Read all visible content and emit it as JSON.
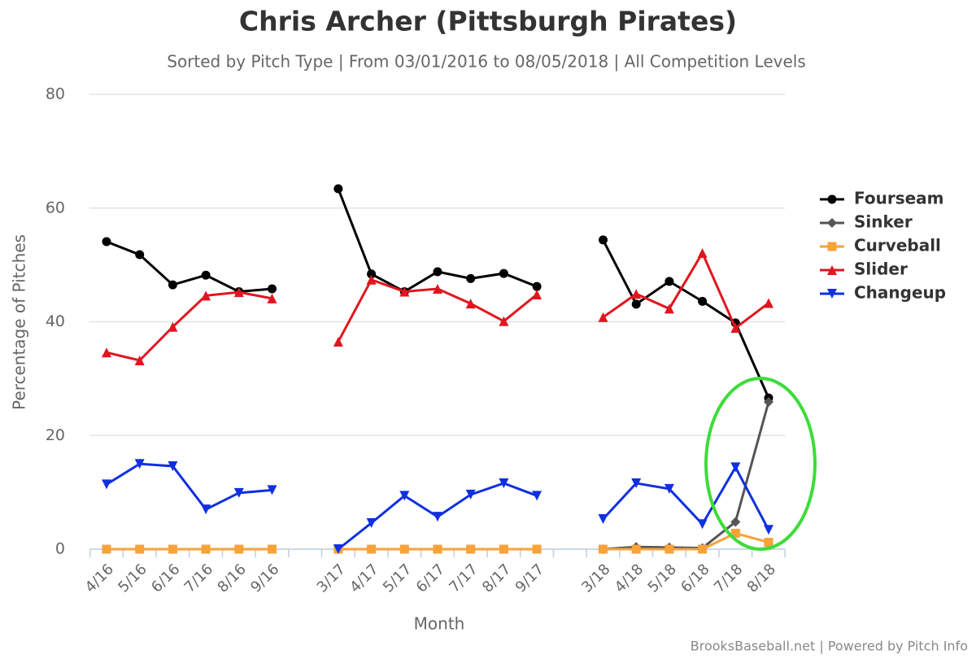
{
  "chart_data": {
    "type": "line",
    "title": "Chris Archer (Pittsburgh Pirates)",
    "subtitle": "Sorted by Pitch Type | From 03/01/2016 to 08/05/2018 | All Competition Levels",
    "x_label": "Month",
    "y_label": "Percentage of Pitches",
    "credit": "BrooksBaseball.net | Powered by Pitch Info",
    "categories": [
      "4/16",
      "5/16",
      "6/16",
      "7/16",
      "8/16",
      "9/16",
      null,
      "3/17",
      "4/17",
      "5/17",
      "6/17",
      "7/17",
      "8/17",
      "9/17",
      null,
      "3/18",
      "4/18",
      "5/18",
      "6/18",
      "7/18",
      "8/18"
    ],
    "ylim": [
      0,
      80
    ],
    "yticks": [
      0,
      20,
      40,
      60,
      80
    ],
    "grid": true,
    "legend": "right",
    "series": [
      {
        "name": "Fourseam",
        "color": "#000000",
        "marker": "circle",
        "values": [
          54.1,
          51.8,
          46.5,
          48.2,
          45.3,
          45.8,
          null,
          63.4,
          48.4,
          45.3,
          48.8,
          47.6,
          48.5,
          46.2,
          null,
          54.4,
          43.1,
          47.1,
          43.6,
          39.8,
          26.6
        ]
      },
      {
        "name": "Sinker",
        "color": "#555555",
        "marker": "diamond",
        "values": [
          null,
          null,
          null,
          null,
          null,
          null,
          null,
          null,
          null,
          null,
          null,
          null,
          null,
          null,
          null,
          0,
          0.4,
          0.3,
          0.2,
          4.8,
          25.9
        ]
      },
      {
        "name": "Curveball",
        "color": "#f7a23b",
        "marker": "square",
        "values": [
          0,
          0,
          0,
          0,
          0,
          0,
          null,
          0,
          0,
          0,
          0,
          0,
          0,
          0,
          null,
          0,
          0,
          0,
          0,
          2.8,
          1.2
        ]
      },
      {
        "name": "Slider",
        "color": "#e0161f",
        "marker": "triangle",
        "values": [
          34.6,
          33.2,
          39.1,
          44.6,
          45.2,
          44.1,
          null,
          36.5,
          47.4,
          45.3,
          45.8,
          43.2,
          40.1,
          44.8,
          null,
          40.8,
          44.9,
          42.3,
          52.1,
          38.9,
          43.3
        ]
      },
      {
        "name": "Changeup",
        "color": "#1030e0",
        "marker": "triangle-down",
        "values": [
          11.4,
          15.0,
          14.6,
          7.0,
          9.9,
          10.4,
          null,
          0,
          4.6,
          9.4,
          5.7,
          9.6,
          11.6,
          9.4,
          null,
          5.3,
          11.6,
          10.6,
          4.4,
          14.4,
          3.4
        ]
      }
    ]
  }
}
